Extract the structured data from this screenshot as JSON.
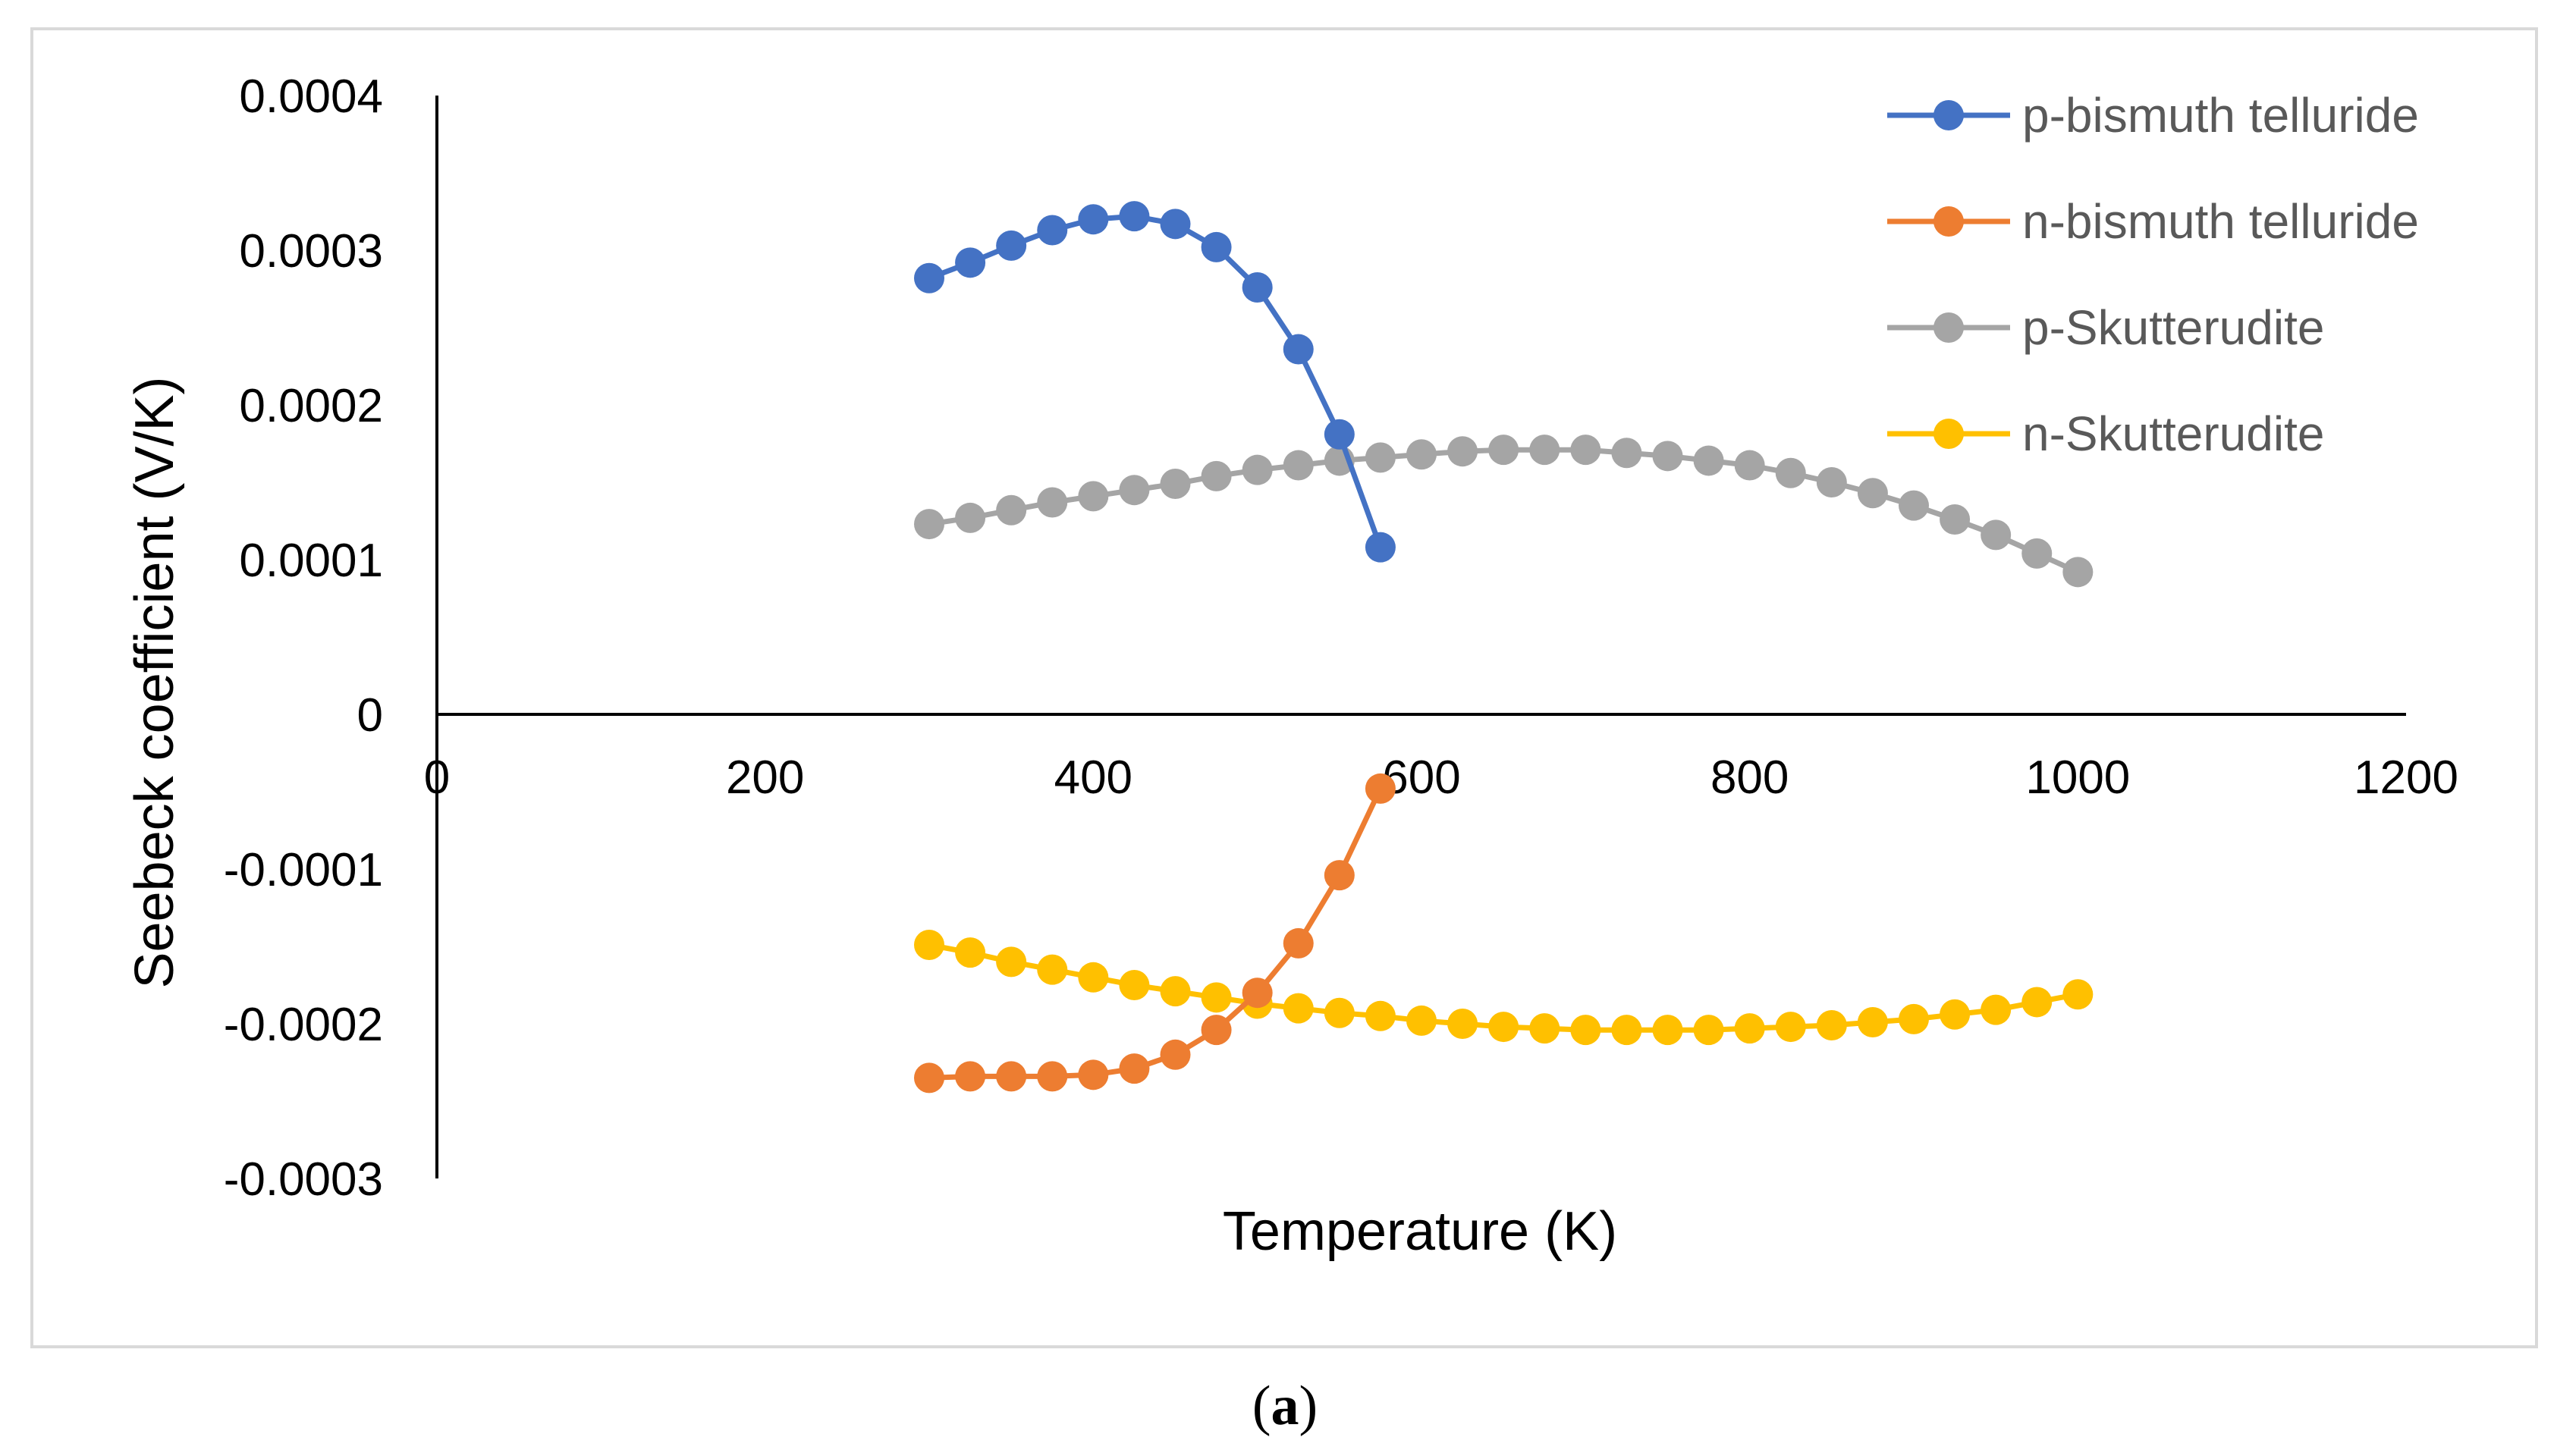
{
  "caption": {
    "open": "(",
    "letter": "a",
    "close": ")"
  },
  "chart_data": {
    "type": "line",
    "title": "",
    "xlabel": "Temperature (K)",
    "ylabel": "Seebeck coefficient (V/K)",
    "xlim": [
      0,
      1200
    ],
    "ylim": [
      -0.0003,
      0.0004
    ],
    "x_ticks": [
      0,
      200,
      400,
      600,
      800,
      1000,
      1200
    ],
    "x_tick_labels": [
      "0",
      "200",
      "400",
      "600",
      "800",
      "1000",
      "1200"
    ],
    "y_ticks": [
      0.0004,
      0.0003,
      0.0002,
      0.0001,
      0,
      -0.0001,
      -0.0002,
      -0.0003
    ],
    "y_tick_labels": [
      "0.0004",
      "0.0003",
      "0.0002",
      "0.0001",
      "0",
      "-0.0001",
      "-0.0002",
      "-0.0003"
    ],
    "grid": false,
    "legend_position": "top-right",
    "series": [
      {
        "name": "p-bismuth telluride",
        "color": "#4472C4",
        "x": [
          300,
          325,
          350,
          375,
          400,
          425,
          450,
          475,
          500,
          525,
          550,
          575
        ],
        "y": [
          0.000282,
          0.000292,
          0.000303,
          0.000313,
          0.00032,
          0.000322,
          0.000317,
          0.000302,
          0.000276,
          0.000236,
          0.000181,
          0.000108
        ]
      },
      {
        "name": "n-bismuth telluride",
        "color": "#ED7D31",
        "x": [
          300,
          325,
          350,
          375,
          400,
          425,
          450,
          475,
          500,
          525,
          550,
          575
        ],
        "y": [
          -0.000235,
          -0.000234,
          -0.000234,
          -0.000234,
          -0.000233,
          -0.000229,
          -0.00022,
          -0.000204,
          -0.00018,
          -0.000148,
          -0.000104,
          -4.8e-05
        ]
      },
      {
        "name": "p-Skutterudite",
        "color": "#A5A5A5",
        "x": [
          300,
          325,
          350,
          375,
          400,
          425,
          450,
          475,
          500,
          525,
          550,
          575,
          600,
          625,
          650,
          675,
          700,
          725,
          750,
          775,
          800,
          825,
          850,
          875,
          900,
          925,
          950,
          975,
          1000
        ],
        "y": [
          0.000123,
          0.000127,
          0.000132,
          0.000137,
          0.000141,
          0.000145,
          0.000149,
          0.000154,
          0.000158,
          0.000161,
          0.000164,
          0.000166,
          0.000168,
          0.00017,
          0.000171,
          0.000171,
          0.000171,
          0.000169,
          0.000167,
          0.000164,
          0.000161,
          0.000156,
          0.00015,
          0.000143,
          0.000135,
          0.000126,
          0.000116,
          0.000104,
          9.2e-05
        ]
      },
      {
        "name": "n-Skutterudite",
        "color": "#FFC000",
        "x": [
          300,
          325,
          350,
          375,
          400,
          425,
          450,
          475,
          500,
          525,
          550,
          575,
          600,
          625,
          650,
          675,
          700,
          725,
          750,
          775,
          800,
          825,
          850,
          875,
          900,
          925,
          950,
          975,
          1000
        ],
        "y": [
          -0.000149,
          -0.000154,
          -0.00016,
          -0.000165,
          -0.00017,
          -0.000175,
          -0.000179,
          -0.000183,
          -0.000187,
          -0.00019,
          -0.000193,
          -0.000195,
          -0.000198,
          -0.0002,
          -0.000202,
          -0.000203,
          -0.000204,
          -0.000204,
          -0.000204,
          -0.000204,
          -0.000203,
          -0.000202,
          -0.000201,
          -0.000199,
          -0.000197,
          -0.000194,
          -0.000191,
          -0.000186,
          -0.000181
        ]
      }
    ]
  }
}
